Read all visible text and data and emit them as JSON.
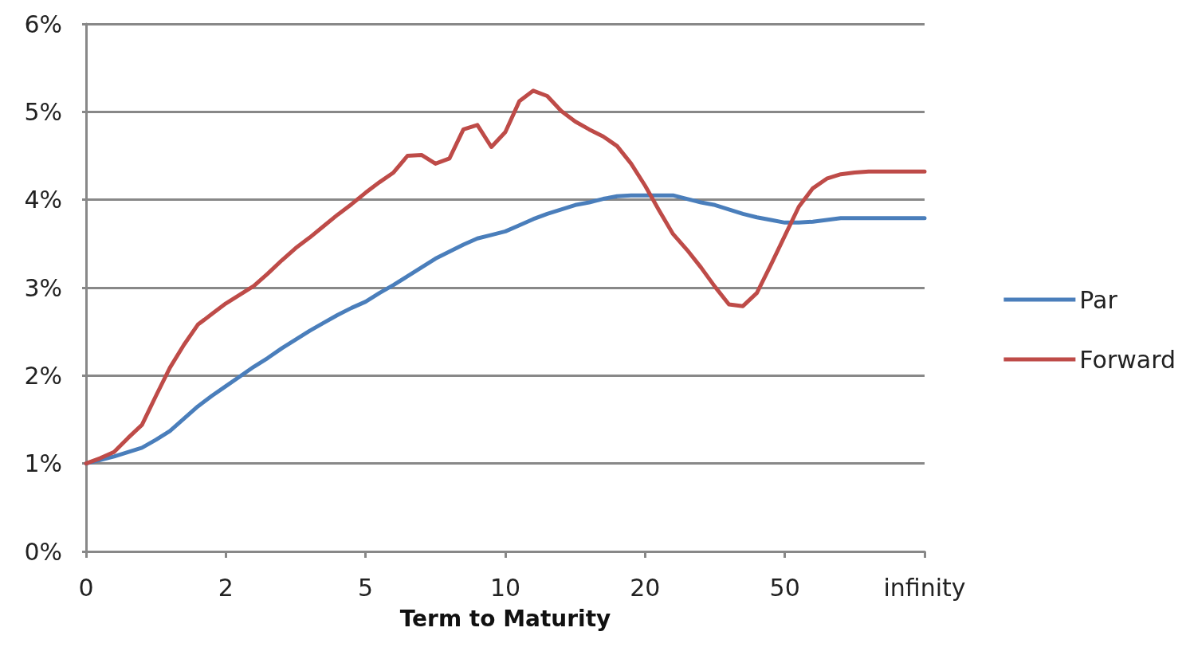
{
  "chart_data": {
    "type": "line",
    "xlabel": "Term to Maturity",
    "categories": [
      "0",
      null,
      null,
      null,
      null,
      null,
      null,
      null,
      null,
      null,
      "2",
      null,
      null,
      null,
      null,
      null,
      null,
      null,
      null,
      null,
      "5",
      null,
      null,
      null,
      null,
      null,
      null,
      null,
      null,
      null,
      "10",
      null,
      null,
      null,
      null,
      null,
      null,
      null,
      null,
      null,
      "20",
      null,
      null,
      null,
      null,
      null,
      null,
      null,
      null,
      null,
      "50",
      null,
      null,
      null,
      null,
      null,
      null,
      null,
      null,
      null,
      "infinity"
    ],
    "ylim": [
      0,
      6
    ],
    "yticks": [
      {
        "value": 0,
        "label": "0%"
      },
      {
        "value": 1,
        "label": "1%"
      },
      {
        "value": 2,
        "label": "2%"
      },
      {
        "value": 3,
        "label": "3%"
      },
      {
        "value": 4,
        "label": "4%"
      },
      {
        "value": 5,
        "label": "5%"
      },
      {
        "value": 6,
        "label": "6%"
      }
    ],
    "grid": "y",
    "legend": "right",
    "marker": "none",
    "line_style": "solid",
    "series": [
      {
        "name": "Par",
        "color": "#4a7ebb",
        "values": [
          1.0,
          1.04,
          1.08,
          1.13,
          1.18,
          1.27,
          1.37,
          1.51,
          1.65,
          1.77,
          1.88,
          1.99,
          2.1,
          2.2,
          2.31,
          2.41,
          2.51,
          2.6,
          2.69,
          2.77,
          2.84,
          2.94,
          3.03,
          3.13,
          3.23,
          3.33,
          3.41,
          3.49,
          3.56,
          3.6,
          3.64,
          3.71,
          3.78,
          3.84,
          3.89,
          3.94,
          3.97,
          4.01,
          4.04,
          4.05,
          4.05,
          4.05,
          4.05,
          4.01,
          3.97,
          3.94,
          3.89,
          3.84,
          3.8,
          3.77,
          3.74,
          3.74,
          3.75,
          3.77,
          3.79,
          3.79,
          3.79,
          3.79,
          3.79,
          3.79,
          3.79
        ]
      },
      {
        "name": "Forward",
        "color": "#be4b48",
        "values": [
          1.0,
          1.06,
          1.13,
          1.29,
          1.44,
          1.77,
          2.09,
          2.35,
          2.58,
          2.7,
          2.82,
          2.92,
          3.02,
          3.16,
          3.31,
          3.45,
          3.57,
          3.7,
          3.83,
          3.95,
          4.08,
          4.2,
          4.31,
          4.5,
          4.51,
          4.41,
          4.47,
          4.8,
          4.85,
          4.6,
          4.77,
          5.12,
          5.24,
          5.18,
          5.01,
          4.89,
          4.8,
          4.72,
          4.61,
          4.41,
          4.16,
          3.88,
          3.61,
          3.43,
          3.23,
          3.01,
          2.81,
          2.79,
          2.94,
          3.26,
          3.59,
          3.92,
          4.13,
          4.24,
          4.29,
          4.31,
          4.32,
          4.32,
          4.32,
          4.32,
          4.32
        ]
      }
    ]
  }
}
